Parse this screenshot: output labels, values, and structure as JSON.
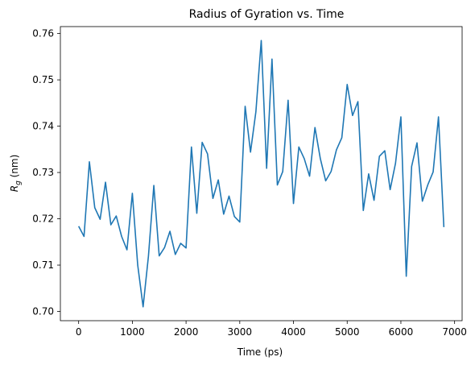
{
  "chart_data": {
    "type": "line",
    "title": "Radius of Gyration vs. Time",
    "xlabel": "Time (ps)",
    "ylabel_main": "R",
    "ylabel_sub": "g",
    "ylabel_unit": " (nm)",
    "xlim": [
      -340,
      7140
    ],
    "ylim": [
      0.698,
      0.7615
    ],
    "xticks": [
      0,
      1000,
      2000,
      3000,
      4000,
      5000,
      6000,
      7000
    ],
    "yticks": [
      0.7,
      0.71,
      0.72,
      0.73,
      0.74,
      0.75,
      0.76
    ],
    "ytick_labels": [
      "0.70",
      "0.71",
      "0.72",
      "0.73",
      "0.74",
      "0.75",
      "0.76"
    ],
    "grid": false,
    "line_color": "#1f77b4",
    "series": [
      {
        "x": [
          0,
          100,
          200,
          300,
          400,
          500,
          600,
          700,
          800,
          900,
          1000,
          1100,
          1200,
          1300,
          1400,
          1500,
          1600,
          1700,
          1800,
          1900,
          2000,
          2100,
          2200,
          2300,
          2400,
          2500,
          2600,
          2700,
          2800,
          2900,
          3000,
          3100,
          3200,
          3300,
          3400,
          3500,
          3600,
          3700,
          3800,
          3900,
          4000,
          4100,
          4200,
          4300,
          4400,
          4500,
          4600,
          4700,
          4800,
          4900,
          5000,
          5100,
          5200,
          5300,
          5400,
          5500,
          5600,
          5700,
          5800,
          5900,
          6000,
          6100,
          6200,
          6300,
          6400,
          6500,
          6600,
          6700,
          6800
        ],
        "values": [
          0.7184,
          0.7162,
          0.7323,
          0.7224,
          0.7199,
          0.7279,
          0.7187,
          0.7206,
          0.7162,
          0.7133,
          0.7255,
          0.71,
          0.701,
          0.712,
          0.7272,
          0.712,
          0.7138,
          0.7173,
          0.7123,
          0.7147,
          0.7137,
          0.7355,
          0.7212,
          0.7365,
          0.734,
          0.7244,
          0.7284,
          0.721,
          0.7249,
          0.7205,
          0.7193,
          0.7443,
          0.7344,
          0.7431,
          0.7585,
          0.7309,
          0.7545,
          0.7273,
          0.7302,
          0.7456,
          0.7233,
          0.7355,
          0.733,
          0.7292,
          0.7397,
          0.733,
          0.7282,
          0.7302,
          0.7349,
          0.7375,
          0.749,
          0.7423,
          0.7453,
          0.7218,
          0.7297,
          0.724,
          0.7335,
          0.7347,
          0.7263,
          0.732,
          0.742,
          0.7076,
          0.7313,
          0.7364,
          0.7238,
          0.7273,
          0.7301,
          0.742,
          0.7182
        ]
      }
    ]
  }
}
